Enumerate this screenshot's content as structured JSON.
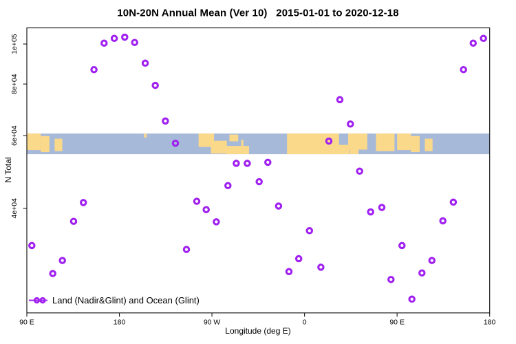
{
  "chart_data": {
    "type": "scatter",
    "title": "10N-20N Annual Mean (Ver 10)   2015-01-01 to 2020-12-18",
    "xlabel": "Longitude (deg E)",
    "ylabel": "N Total",
    "x_scale": "linear",
    "y_scale": "log10",
    "xlim": [
      90,
      540
    ],
    "ylim": [
      22320,
      109440
    ],
    "grid": false,
    "x_ticks": [
      {
        "lon": 90,
        "label": "90 E"
      },
      {
        "lon": 180,
        "label": "180"
      },
      {
        "lon": 270,
        "label": "90 W"
      },
      {
        "lon": 360,
        "label": "0"
      },
      {
        "lon": 450,
        "label": "90 E"
      },
      {
        "lon": 540,
        "label": "180"
      }
    ],
    "y_ticks": [
      {
        "v": 100000,
        "label": "1e+05"
      },
      {
        "v": 80000,
        "label": "8e+04"
      },
      {
        "v": 60000,
        "label": "6e+04"
      },
      {
        "v": 40000,
        "label": "4e+04"
      }
    ],
    "series": [
      {
        "name": "Land (Nadir&Glint) and Ocean (Glint)",
        "marker": "open-circle",
        "color": "#A020F0",
        "points": [
          [
            165.1,
            100500
          ],
          [
            175.0,
            103200
          ],
          [
            185.2,
            103900
          ],
          [
            194.8,
            100900
          ],
          [
            155.3,
            86700
          ],
          [
            205.1,
            89900
          ],
          [
            214.9,
            79400
          ],
          [
            224.7,
            65100
          ],
          [
            234.5,
            57500
          ],
          [
            524.0,
            100500
          ],
          [
            534.0,
            103200
          ],
          [
            514.6,
            86700
          ],
          [
            394.4,
            73300
          ],
          [
            404.6,
            64000
          ],
          [
            383.7,
            58200
          ],
          [
            293.6,
            51400
          ],
          [
            304.3,
            51400
          ],
          [
            324.3,
            51700
          ],
          [
            285.5,
            45400
          ],
          [
            315.9,
            46400
          ],
          [
            413.6,
            49200
          ],
          [
            145.0,
            41300
          ],
          [
            135.5,
            37200
          ],
          [
            94.9,
            32500
          ],
          [
            124.6,
            29900
          ],
          [
            115.2,
            27800
          ],
          [
            255.2,
            41600
          ],
          [
            264.4,
            39700
          ],
          [
            274.2,
            37100
          ],
          [
            245.2,
            31800
          ],
          [
            334.8,
            40500
          ],
          [
            364.8,
            35300
          ],
          [
            354.4,
            30200
          ],
          [
            344.9,
            28100
          ],
          [
            375.9,
            28800
          ],
          [
            424.3,
            39200
          ],
          [
            435.2,
            40200
          ],
          [
            494.5,
            37300
          ],
          [
            504.7,
            41400
          ],
          [
            454.8,
            32500
          ],
          [
            483.9,
            29900
          ],
          [
            444.1,
            26900
          ],
          [
            474.2,
            27900
          ],
          [
            464.4,
            24100
          ]
        ]
      }
    ],
    "map_band": {
      "description": "world coastline strip for latitude band 10N-20N drawn across plot",
      "n_top": 60700,
      "n_bottom": 54100,
      "ocean_color": "#A7B9D9",
      "land_color": "#FBD98A",
      "land_patches": [
        [
          90,
          103.5,
          0,
          0.8,
          "land"
        ],
        [
          103.5,
          112,
          0.12,
          0.9,
          "land"
        ],
        [
          117,
          124.5,
          0.25,
          0.85,
          "land"
        ],
        [
          204,
          206.5,
          0,
          0.2,
          "land"
        ],
        [
          257,
          272,
          0,
          0.65,
          "land"
        ],
        [
          269,
          284.5,
          0.35,
          0.97,
          "land"
        ],
        [
          287,
          295.5,
          0.05,
          0.38,
          "land"
        ],
        [
          284,
          306,
          0.6,
          1.0,
          "land"
        ],
        [
          298.5,
          300.5,
          0.3,
          0.62,
          "land"
        ],
        [
          343,
          403.5,
          0,
          1.0,
          "land"
        ],
        [
          393.5,
          402.5,
          0,
          0.55,
          "sea"
        ],
        [
          402.5,
          421,
          0,
          0.78,
          "land"
        ],
        [
          404,
          412.5,
          0.72,
          1.0,
          "land"
        ],
        [
          429.5,
          447.5,
          0,
          0.85,
          "land"
        ],
        [
          450,
          463.5,
          0,
          0.8,
          "land"
        ],
        [
          463.5,
          472,
          0.12,
          0.9,
          "land"
        ],
        [
          477,
          484.5,
          0.25,
          0.85,
          "land"
        ]
      ]
    },
    "legend": {
      "position": "bottom-left",
      "label": "Land (Nadir&Glint) and Ocean (Glint)",
      "line_color": "#A020F0",
      "marker_color": "#A020F0"
    },
    "axis_color": "#1a1a1a",
    "text_color": "#000000"
  }
}
